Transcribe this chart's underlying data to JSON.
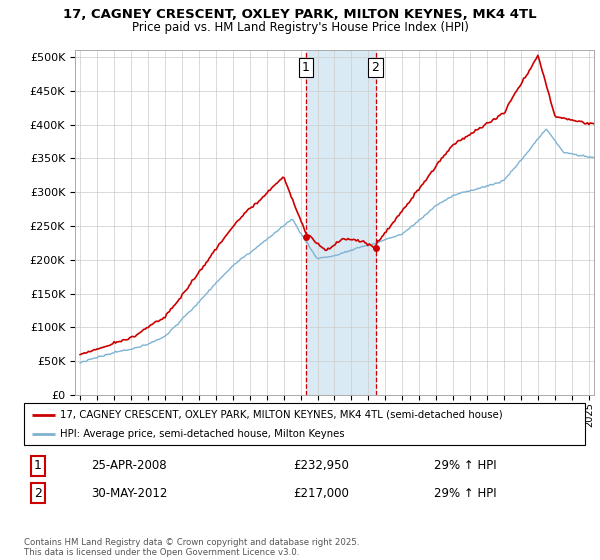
{
  "title": "17, CAGNEY CRESCENT, OXLEY PARK, MILTON KEYNES, MK4 4TL",
  "subtitle": "Price paid vs. HM Land Registry's House Price Index (HPI)",
  "legend_line1": "17, CAGNEY CRESCENT, OXLEY PARK, MILTON KEYNES, MK4 4TL (semi-detached house)",
  "legend_line2": "HPI: Average price, semi-detached house, Milton Keynes",
  "sale1_label": "1",
  "sale1_date": "25-APR-2008",
  "sale1_price": "£232,950",
  "sale1_hpi": "29% ↑ HPI",
  "sale2_label": "2",
  "sale2_date": "30-MAY-2012",
  "sale2_price": "£217,000",
  "sale2_hpi": "29% ↑ HPI",
  "footer": "Contains HM Land Registry data © Crown copyright and database right 2025.\nThis data is licensed under the Open Government Licence v3.0.",
  "sale1_year": 2008.32,
  "sale2_year": 2012.42,
  "shade_start": 2008.32,
  "shade_end": 2012.42,
  "ylim_min": 0,
  "ylim_max": 510000,
  "xlim_min": 1994.7,
  "xlim_max": 2025.3,
  "hpi_color": "#7fb3d3",
  "price_color": "#cc0000",
  "shade_color": "#daeaf5",
  "grid_color": "#cccccc",
  "background_color": "#ffffff",
  "sale1_price_val": 232950,
  "sale2_price_val": 217000
}
